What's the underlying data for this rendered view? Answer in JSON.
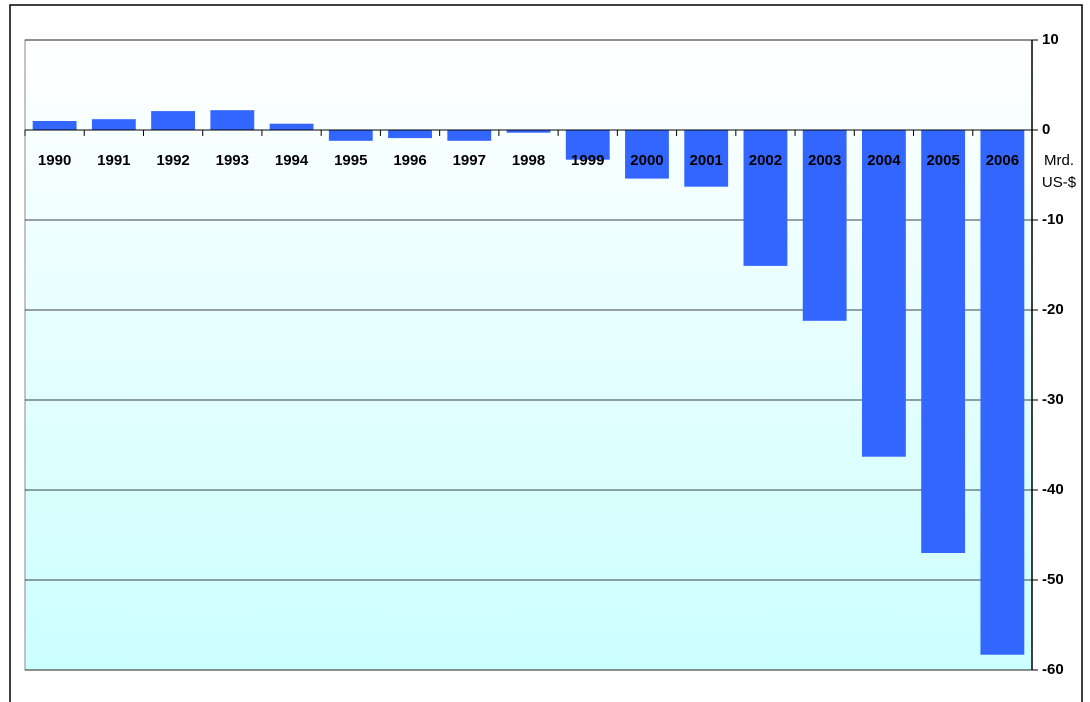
{
  "chart_data": {
    "type": "bar",
    "y_label": "Mrd. US-$",
    "categories": [
      "1990",
      "1991",
      "1992",
      "1993",
      "1994",
      "1995",
      "1996",
      "1997",
      "1998",
      "1999",
      "2000",
      "2001",
      "2002",
      "2003",
      "2004",
      "2005",
      "2006"
    ],
    "values": [
      1.0,
      1.2,
      2.1,
      2.2,
      0.7,
      -1.2,
      -0.9,
      -1.2,
      -0.3,
      -3.3,
      -5.4,
      -6.3,
      -15.1,
      -21.2,
      -36.3,
      -47.0,
      -58.3
    ],
    "color": "#3366ff",
    "ylim": [
      -60,
      10
    ],
    "yticks": [
      10,
      0,
      -10,
      -20,
      -30,
      -40,
      -50,
      -60
    ],
    "grid": true
  }
}
